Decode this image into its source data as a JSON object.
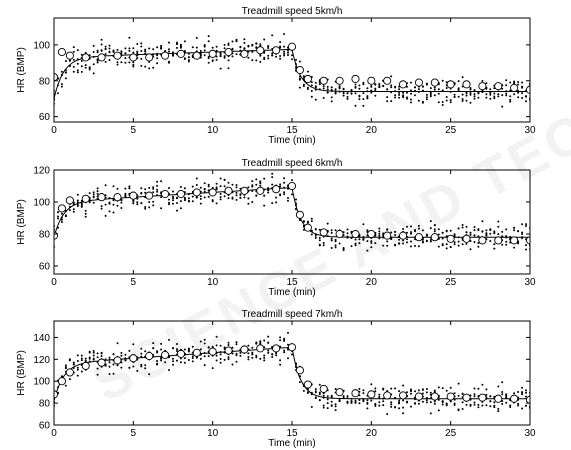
{
  "watermark": "SCIENCE AND TECHNOLOGY PUBLICATIONS",
  "chart_data": [
    {
      "type": "scatter",
      "title": "Treadmill speed 5km/h",
      "xlabel": "Time (min)",
      "ylabel": "HR (BMP)",
      "xlim": [
        0,
        30
      ],
      "ylim": [
        57,
        115
      ],
      "xticks": [
        0,
        5,
        10,
        15,
        20,
        25,
        30
      ],
      "yticks": [
        60,
        80,
        100
      ],
      "grid": false,
      "model": {
        "base": 70,
        "rise_to": 93,
        "drift_per_min": 0.3,
        "drop_at": 15,
        "recover_to": 74
      },
      "mean_series": {
        "name": "mean",
        "x": [
          0,
          0.5,
          1,
          2,
          3,
          4,
          5,
          6,
          7,
          8,
          9,
          10,
          11,
          12,
          13,
          14,
          15,
          15.5,
          16,
          17,
          18,
          19,
          20,
          21,
          22,
          23,
          24,
          25,
          26,
          27,
          28,
          29,
          30
        ],
        "y": [
          82,
          96,
          94,
          93,
          93,
          94,
          93,
          93,
          94,
          95,
          94,
          95,
          96,
          95,
          97,
          97,
          99,
          86,
          81,
          80,
          80,
          81,
          80,
          80,
          78,
          79,
          79,
          78,
          78,
          77,
          77,
          76,
          75
        ]
      }
    },
    {
      "type": "scatter",
      "title": "Treadmill speed 6km/h",
      "xlabel": "Time (min)",
      "ylabel": "HR (BMP)",
      "xlim": [
        0,
        30
      ],
      "ylim": [
        55,
        120
      ],
      "xticks": [
        0,
        5,
        10,
        15,
        20,
        25,
        30
      ],
      "yticks": [
        60,
        80,
        100,
        120
      ],
      "grid": false,
      "model": {
        "base": 78,
        "rise_to": 100,
        "drift_per_min": 0.6,
        "drop_at": 15,
        "recover_to": 78
      },
      "mean_series": {
        "name": "mean",
        "x": [
          0,
          0.5,
          1,
          2,
          3,
          4,
          5,
          6,
          7,
          8,
          9,
          10,
          11,
          12,
          13,
          14,
          15,
          15.5,
          16,
          17,
          18,
          19,
          20,
          21,
          22,
          23,
          24,
          25,
          26,
          27,
          28,
          29,
          30
        ],
        "y": [
          79,
          96,
          101,
          102,
          103,
          103,
          104,
          104,
          105,
          105,
          106,
          106,
          107,
          107,
          107,
          108,
          110,
          92,
          84,
          81,
          80,
          80,
          80,
          79,
          79,
          78,
          78,
          77,
          77,
          76,
          76,
          76,
          76
        ]
      }
    },
    {
      "type": "scatter",
      "title": "Treadmill speed 7km/h",
      "xlabel": "Time (min)",
      "ylabel": "HR (BMP)",
      "xlim": [
        0,
        30
      ],
      "ylim": [
        60,
        155
      ],
      "xticks": [
        0,
        5,
        10,
        15,
        20,
        25,
        30
      ],
      "yticks": [
        60,
        80,
        100,
        120,
        140
      ],
      "grid": false,
      "model": {
        "base": 82,
        "rise_to": 116,
        "drift_per_min": 1.0,
        "drop_at": 15,
        "recover_to": 84
      },
      "mean_series": {
        "name": "mean",
        "x": [
          0,
          0.5,
          1,
          2,
          3,
          4,
          5,
          6,
          7,
          8,
          9,
          10,
          11,
          12,
          13,
          14,
          15,
          15.5,
          16,
          17,
          18,
          19,
          20,
          21,
          22,
          23,
          24,
          25,
          26,
          27,
          28,
          29,
          30
        ],
        "y": [
          88,
          100,
          108,
          114,
          117,
          119,
          121,
          123,
          124,
          125,
          126,
          127,
          128,
          129,
          130,
          130,
          131,
          110,
          97,
          93,
          90,
          89,
          88,
          87,
          87,
          86,
          86,
          86,
          85,
          85,
          84,
          84,
          83
        ]
      }
    }
  ]
}
